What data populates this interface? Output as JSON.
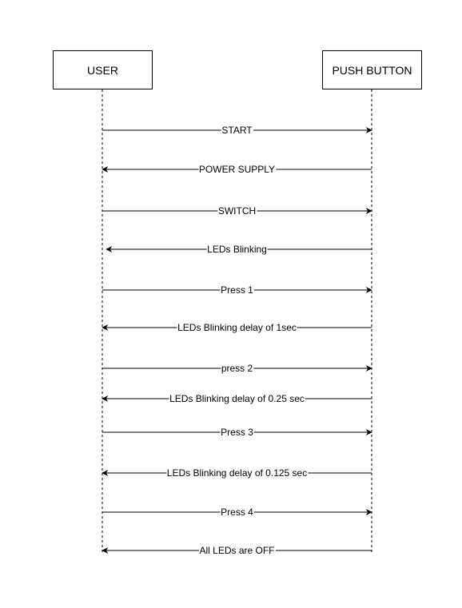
{
  "participants": {
    "left": "USER",
    "right": "PUSH BUTTON"
  },
  "messages": [
    {
      "label": "START",
      "direction": "right"
    },
    {
      "label": "POWER SUPPLY",
      "direction": "left"
    },
    {
      "label": "SWITCH",
      "direction": "right"
    },
    {
      "label": "LEDs Blinking",
      "direction": "left"
    },
    {
      "label": "Press 1",
      "direction": "right"
    },
    {
      "label": "LEDs Blinking delay of 1sec",
      "direction": "left"
    },
    {
      "label": "press 2",
      "direction": "right"
    },
    {
      "label": "LEDs Blinking delay of 0.25 sec",
      "direction": "left"
    },
    {
      "label": "Press 3",
      "direction": "right"
    },
    {
      "label": "LEDs Blinking delay of 0.125 sec",
      "direction": "left"
    },
    {
      "label": "Press 4",
      "direction": "right"
    },
    {
      "label": "All LEDs are OFF",
      "direction": "left"
    }
  ]
}
